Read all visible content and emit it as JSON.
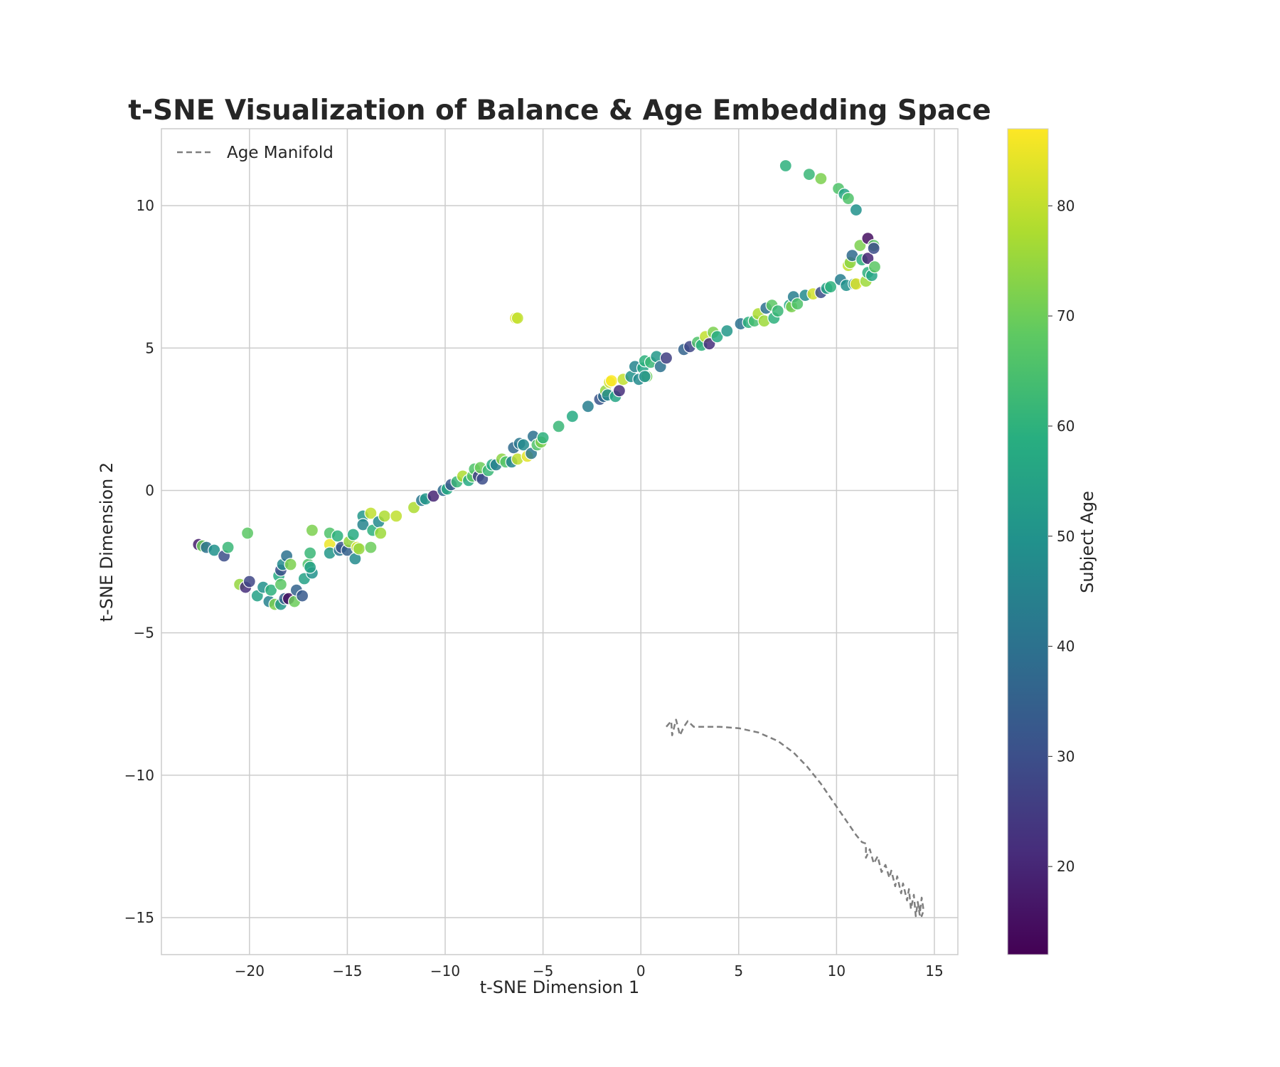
{
  "chart_data": {
    "type": "scatter",
    "title": "t-SNE Visualization of Balance & Age Embedding Space",
    "xlabel": "t-SNE Dimension 1",
    "ylabel": "t-SNE Dimension 2",
    "xlim": [
      -24.5,
      16.2
    ],
    "ylim": [
      -16.3,
      12.7
    ],
    "xticks": [
      -20,
      -15,
      -10,
      -5,
      0,
      5,
      10,
      15
    ],
    "yticks": [
      -15,
      -10,
      -5,
      0,
      5,
      10
    ],
    "grid": true,
    "legend": {
      "position": "top-left",
      "entries": [
        {
          "label": "Age Manifold",
          "style": "dashed",
          "color": "#7f7f7f"
        }
      ]
    },
    "colorbar": {
      "label": "Subject Age",
      "min": 12,
      "max": 87,
      "ticks": [
        20,
        30,
        40,
        50,
        60,
        70,
        80
      ],
      "colormap": "viridis"
    },
    "series": [
      {
        "kind": "scatter",
        "points": [
          [
            -22.6,
            -1.9,
            18
          ],
          [
            -22.4,
            -1.95,
            70
          ],
          [
            -22.2,
            -2.0,
            40
          ],
          [
            -21.8,
            -2.1,
            50
          ],
          [
            -21.3,
            -2.3,
            30
          ],
          [
            -21.1,
            -2.0,
            62
          ],
          [
            -20.1,
            -1.5,
            68
          ],
          [
            -20.5,
            -3.3,
            75
          ],
          [
            -20.2,
            -3.4,
            22
          ],
          [
            -20.0,
            -3.2,
            28
          ],
          [
            -19.6,
            -3.7,
            55
          ],
          [
            -19.3,
            -3.4,
            50
          ],
          [
            -19.0,
            -3.9,
            45
          ],
          [
            -18.9,
            -3.5,
            60
          ],
          [
            -18.7,
            -4.0,
            72
          ],
          [
            -18.5,
            -3.0,
            58
          ],
          [
            -18.4,
            -4.0,
            52
          ],
          [
            -18.4,
            -2.8,
            30
          ],
          [
            -18.3,
            -2.6,
            48
          ],
          [
            -18.2,
            -3.8,
            35
          ],
          [
            -18.4,
            -3.3,
            68
          ],
          [
            -18.1,
            -2.3,
            40
          ],
          [
            -18.0,
            -3.8,
            15
          ],
          [
            -17.9,
            -2.6,
            72
          ],
          [
            -17.7,
            -3.9,
            70
          ],
          [
            -17.6,
            -3.5,
            36
          ],
          [
            -17.3,
            -3.7,
            33
          ],
          [
            -17.2,
            -3.1,
            55
          ],
          [
            -17.0,
            -2.6,
            66
          ],
          [
            -16.9,
            -2.2,
            62
          ],
          [
            -16.8,
            -2.9,
            50
          ],
          [
            -16.8,
            -1.4,
            72
          ],
          [
            -16.9,
            -2.7,
            55
          ],
          [
            -15.9,
            -1.5,
            66
          ],
          [
            -15.9,
            -1.9,
            85
          ],
          [
            -15.9,
            -2.2,
            52
          ],
          [
            -15.5,
            -1.6,
            60
          ],
          [
            -15.4,
            -2.1,
            42
          ],
          [
            -15.3,
            -2.0,
            32
          ],
          [
            -15.0,
            -2.1,
            35
          ],
          [
            -14.9,
            -1.8,
            75
          ],
          [
            -14.7,
            -1.55,
            58
          ],
          [
            -14.6,
            -2.4,
            48
          ],
          [
            -14.5,
            -2.0,
            82
          ],
          [
            -14.4,
            -2.05,
            75
          ],
          [
            -14.2,
            -0.9,
            52
          ],
          [
            -14.2,
            -1.2,
            46
          ],
          [
            -13.8,
            -0.8,
            80
          ],
          [
            -13.8,
            -2.0,
            70
          ],
          [
            -13.7,
            -1.4,
            60
          ],
          [
            -13.4,
            -1.1,
            48
          ],
          [
            -13.3,
            -1.5,
            76
          ],
          [
            -13.1,
            -0.9,
            78
          ],
          [
            -12.5,
            -0.9,
            80
          ],
          [
            -11.6,
            -0.6,
            78
          ],
          [
            -11.2,
            -0.35,
            42
          ],
          [
            -11.0,
            -0.3,
            52
          ],
          [
            -10.6,
            -0.2,
            20
          ],
          [
            -10.1,
            0.0,
            38
          ],
          [
            -9.9,
            0.05,
            58
          ],
          [
            -9.7,
            0.2,
            32
          ],
          [
            -9.4,
            0.3,
            62
          ],
          [
            -9.1,
            0.5,
            78
          ],
          [
            -8.8,
            0.35,
            58
          ],
          [
            -8.6,
            0.5,
            68
          ],
          [
            -8.5,
            0.75,
            66
          ],
          [
            -8.3,
            0.5,
            26
          ],
          [
            -8.1,
            0.4,
            30
          ],
          [
            -8.2,
            0.8,
            70
          ],
          [
            -7.8,
            0.7,
            62
          ],
          [
            -7.6,
            0.9,
            58
          ],
          [
            -7.4,
            0.9,
            44
          ],
          [
            -7.1,
            1.1,
            74
          ],
          [
            -6.9,
            1.0,
            66
          ],
          [
            -6.6,
            1.0,
            46
          ],
          [
            -6.5,
            1.5,
            38
          ],
          [
            -6.3,
            1.1,
            80
          ],
          [
            -6.2,
            1.65,
            42
          ],
          [
            -6.0,
            1.6,
            48
          ],
          [
            -5.8,
            1.2,
            84
          ],
          [
            -5.6,
            1.3,
            42
          ],
          [
            -5.5,
            1.9,
            40
          ],
          [
            -5.3,
            1.6,
            66
          ],
          [
            -5.1,
            1.7,
            72
          ],
          [
            -5.0,
            1.85,
            60
          ],
          [
            -6.4,
            6.05,
            84
          ],
          [
            -6.3,
            6.05,
            80
          ],
          [
            -4.2,
            2.25,
            62
          ],
          [
            -3.5,
            2.6,
            58
          ],
          [
            -2.7,
            2.95,
            44
          ],
          [
            -2.1,
            3.2,
            32
          ],
          [
            -1.9,
            3.3,
            38
          ],
          [
            -1.8,
            3.5,
            75
          ],
          [
            -1.7,
            3.35,
            48
          ],
          [
            -1.6,
            3.8,
            82
          ],
          [
            -1.5,
            3.85,
            87
          ],
          [
            -1.3,
            3.3,
            56
          ],
          [
            -1.1,
            3.5,
            22
          ],
          [
            -0.9,
            3.9,
            80
          ],
          [
            -0.5,
            4.0,
            50
          ],
          [
            -0.3,
            4.35,
            46
          ],
          [
            -0.1,
            3.9,
            48
          ],
          [
            0.1,
            4.3,
            56
          ],
          [
            0.2,
            4.55,
            60
          ],
          [
            0.3,
            4.0,
            70
          ],
          [
            0.2,
            4.0,
            50
          ],
          [
            0.5,
            4.5,
            62
          ],
          [
            0.8,
            4.7,
            52
          ],
          [
            1.0,
            4.35,
            40
          ],
          [
            1.3,
            4.65,
            26
          ],
          [
            2.2,
            4.95,
            36
          ],
          [
            2.5,
            5.05,
            28
          ],
          [
            2.9,
            5.2,
            66
          ],
          [
            3.1,
            5.1,
            60
          ],
          [
            3.3,
            5.4,
            80
          ],
          [
            3.5,
            5.15,
            22
          ],
          [
            3.7,
            5.55,
            72
          ],
          [
            3.9,
            5.4,
            58
          ],
          [
            4.4,
            5.6,
            52
          ],
          [
            5.1,
            5.85,
            40
          ],
          [
            5.5,
            5.9,
            60
          ],
          [
            5.8,
            5.95,
            64
          ],
          [
            6.0,
            6.2,
            78
          ],
          [
            6.3,
            5.95,
            76
          ],
          [
            6.4,
            6.4,
            40
          ],
          [
            6.7,
            6.5,
            68
          ],
          [
            6.8,
            6.05,
            60
          ],
          [
            7.0,
            6.3,
            62
          ],
          [
            7.6,
            6.5,
            58
          ],
          [
            7.7,
            6.45,
            72
          ],
          [
            7.8,
            6.8,
            44
          ],
          [
            8.0,
            6.55,
            66
          ],
          [
            8.4,
            6.85,
            48
          ],
          [
            8.8,
            6.9,
            82
          ],
          [
            9.2,
            6.95,
            30
          ],
          [
            9.5,
            7.1,
            56
          ],
          [
            9.7,
            7.15,
            60
          ],
          [
            10.2,
            7.4,
            44
          ],
          [
            10.5,
            7.2,
            50
          ],
          [
            10.6,
            7.9,
            80
          ],
          [
            10.7,
            8.0,
            74
          ],
          [
            10.8,
            8.25,
            38
          ],
          [
            10.9,
            7.25,
            52
          ],
          [
            11.0,
            7.25,
            84
          ],
          [
            11.2,
            8.6,
            72
          ],
          [
            11.3,
            8.1,
            60
          ],
          [
            11.5,
            7.35,
            76
          ],
          [
            11.6,
            8.85,
            15
          ],
          [
            11.6,
            8.15,
            20
          ],
          [
            11.6,
            7.65,
            60
          ],
          [
            11.8,
            7.55,
            56
          ],
          [
            11.9,
            8.6,
            68
          ],
          [
            11.9,
            8.5,
            30
          ],
          [
            11.95,
            7.85,
            68
          ],
          [
            7.4,
            11.4,
            60
          ],
          [
            8.6,
            11.1,
            62
          ],
          [
            9.2,
            10.95,
            72
          ],
          [
            10.1,
            10.6,
            66
          ],
          [
            10.4,
            10.4,
            56
          ],
          [
            10.6,
            10.25,
            66
          ],
          [
            11.0,
            9.85,
            50
          ]
        ]
      },
      {
        "kind": "line",
        "name": "Age Manifold",
        "points": [
          [
            1.3,
            -8.3
          ],
          [
            1.55,
            -8.1
          ],
          [
            1.6,
            -8.6
          ],
          [
            1.8,
            -8.05
          ],
          [
            2.0,
            -8.6
          ],
          [
            2.2,
            -8.3
          ],
          [
            2.4,
            -8.1
          ],
          [
            2.7,
            -8.3
          ],
          [
            3.2,
            -8.3
          ],
          [
            4.0,
            -8.3
          ],
          [
            5.0,
            -8.35
          ],
          [
            6.0,
            -8.5
          ],
          [
            7.0,
            -8.8
          ],
          [
            7.8,
            -9.2
          ],
          [
            8.5,
            -9.7
          ],
          [
            9.2,
            -10.3
          ],
          [
            9.9,
            -11.0
          ],
          [
            10.5,
            -11.6
          ],
          [
            11.0,
            -12.1
          ],
          [
            11.3,
            -12.35
          ],
          [
            11.5,
            -12.4
          ],
          [
            11.5,
            -12.9
          ],
          [
            11.7,
            -12.6
          ],
          [
            11.9,
            -13.1
          ],
          [
            12.1,
            -12.85
          ],
          [
            12.3,
            -13.4
          ],
          [
            12.5,
            -13.15
          ],
          [
            12.7,
            -13.6
          ],
          [
            12.8,
            -13.35
          ],
          [
            13.0,
            -13.9
          ],
          [
            13.1,
            -13.55
          ],
          [
            13.3,
            -14.15
          ],
          [
            13.4,
            -13.8
          ],
          [
            13.6,
            -14.4
          ],
          [
            13.7,
            -14.0
          ],
          [
            13.8,
            -14.7
          ],
          [
            13.95,
            -14.2
          ],
          [
            14.05,
            -14.95
          ],
          [
            14.15,
            -14.45
          ],
          [
            14.25,
            -14.9
          ],
          [
            14.35,
            -14.3
          ],
          [
            14.45,
            -14.75
          ],
          [
            14.35,
            -14.95
          ],
          [
            14.2,
            -14.6
          ]
        ]
      }
    ]
  }
}
